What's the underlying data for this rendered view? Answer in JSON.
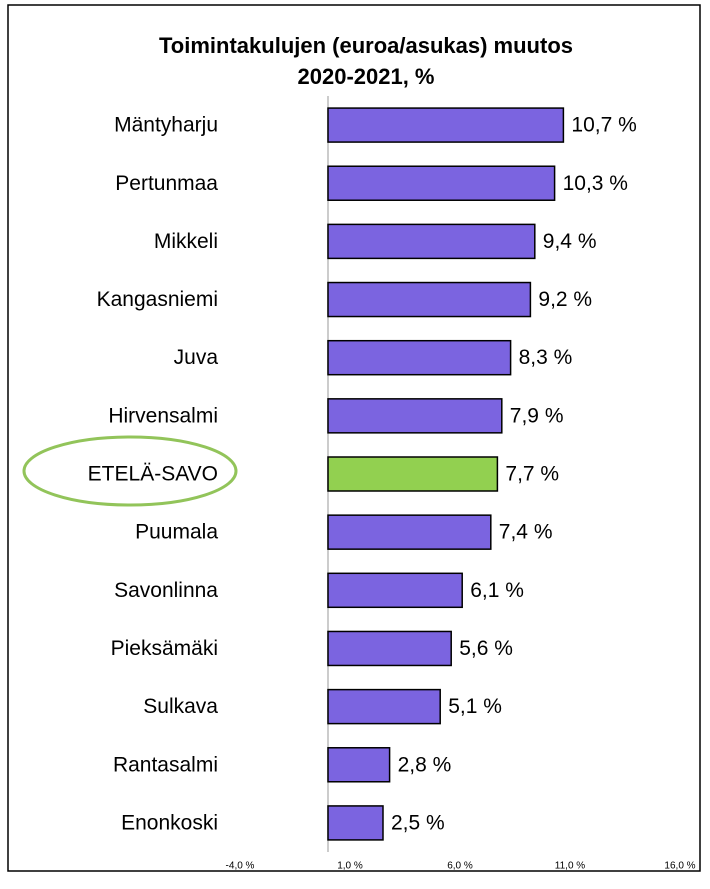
{
  "chart_data": {
    "type": "barh",
    "title": [
      "Toimintakulujen  (euroa/asukas) muutos",
      "2020-2021, %"
    ],
    "categories": [
      "Mäntyharju",
      "Pertunmaa",
      "Mikkeli",
      "Kangasniemi",
      "Juva",
      "Hirvensalmi",
      "ETELÄ-SAVO",
      "Puumala",
      "Savonlinna",
      "Pieksämäki",
      "Sulkava",
      "Rantasalmi",
      "Enonkoski"
    ],
    "values": [
      10.7,
      10.3,
      9.4,
      9.2,
      8.3,
      7.9,
      7.7,
      7.4,
      6.1,
      5.6,
      5.1,
      2.8,
      2.5
    ],
    "value_labels": [
      "10,7 %",
      "10,3 %",
      "9,4 %",
      "9,2 %",
      "8,3 %",
      "7,9 %",
      "7,7 %",
      "7,4 %",
      "6,1 %",
      "5,6 %",
      "5,1 %",
      "2,8 %",
      "2,5 %"
    ],
    "colors": [
      "#7b64e0",
      "#7b64e0",
      "#7b64e0",
      "#7b64e0",
      "#7b64e0",
      "#7b64e0",
      "#92d050",
      "#7b64e0",
      "#7b64e0",
      "#7b64e0",
      "#7b64e0",
      "#7b64e0",
      "#7b64e0"
    ],
    "xlim": [
      -4,
      16
    ],
    "xticks": [
      {
        "value": -4,
        "label": "-4,0 %"
      },
      {
        "value": 1,
        "label": "1,0 %"
      },
      {
        "value": 6,
        "label": "6,0 %"
      },
      {
        "value": 11,
        "label": "11,0 %"
      },
      {
        "value": 16,
        "label": "16,0 %"
      }
    ]
  }
}
